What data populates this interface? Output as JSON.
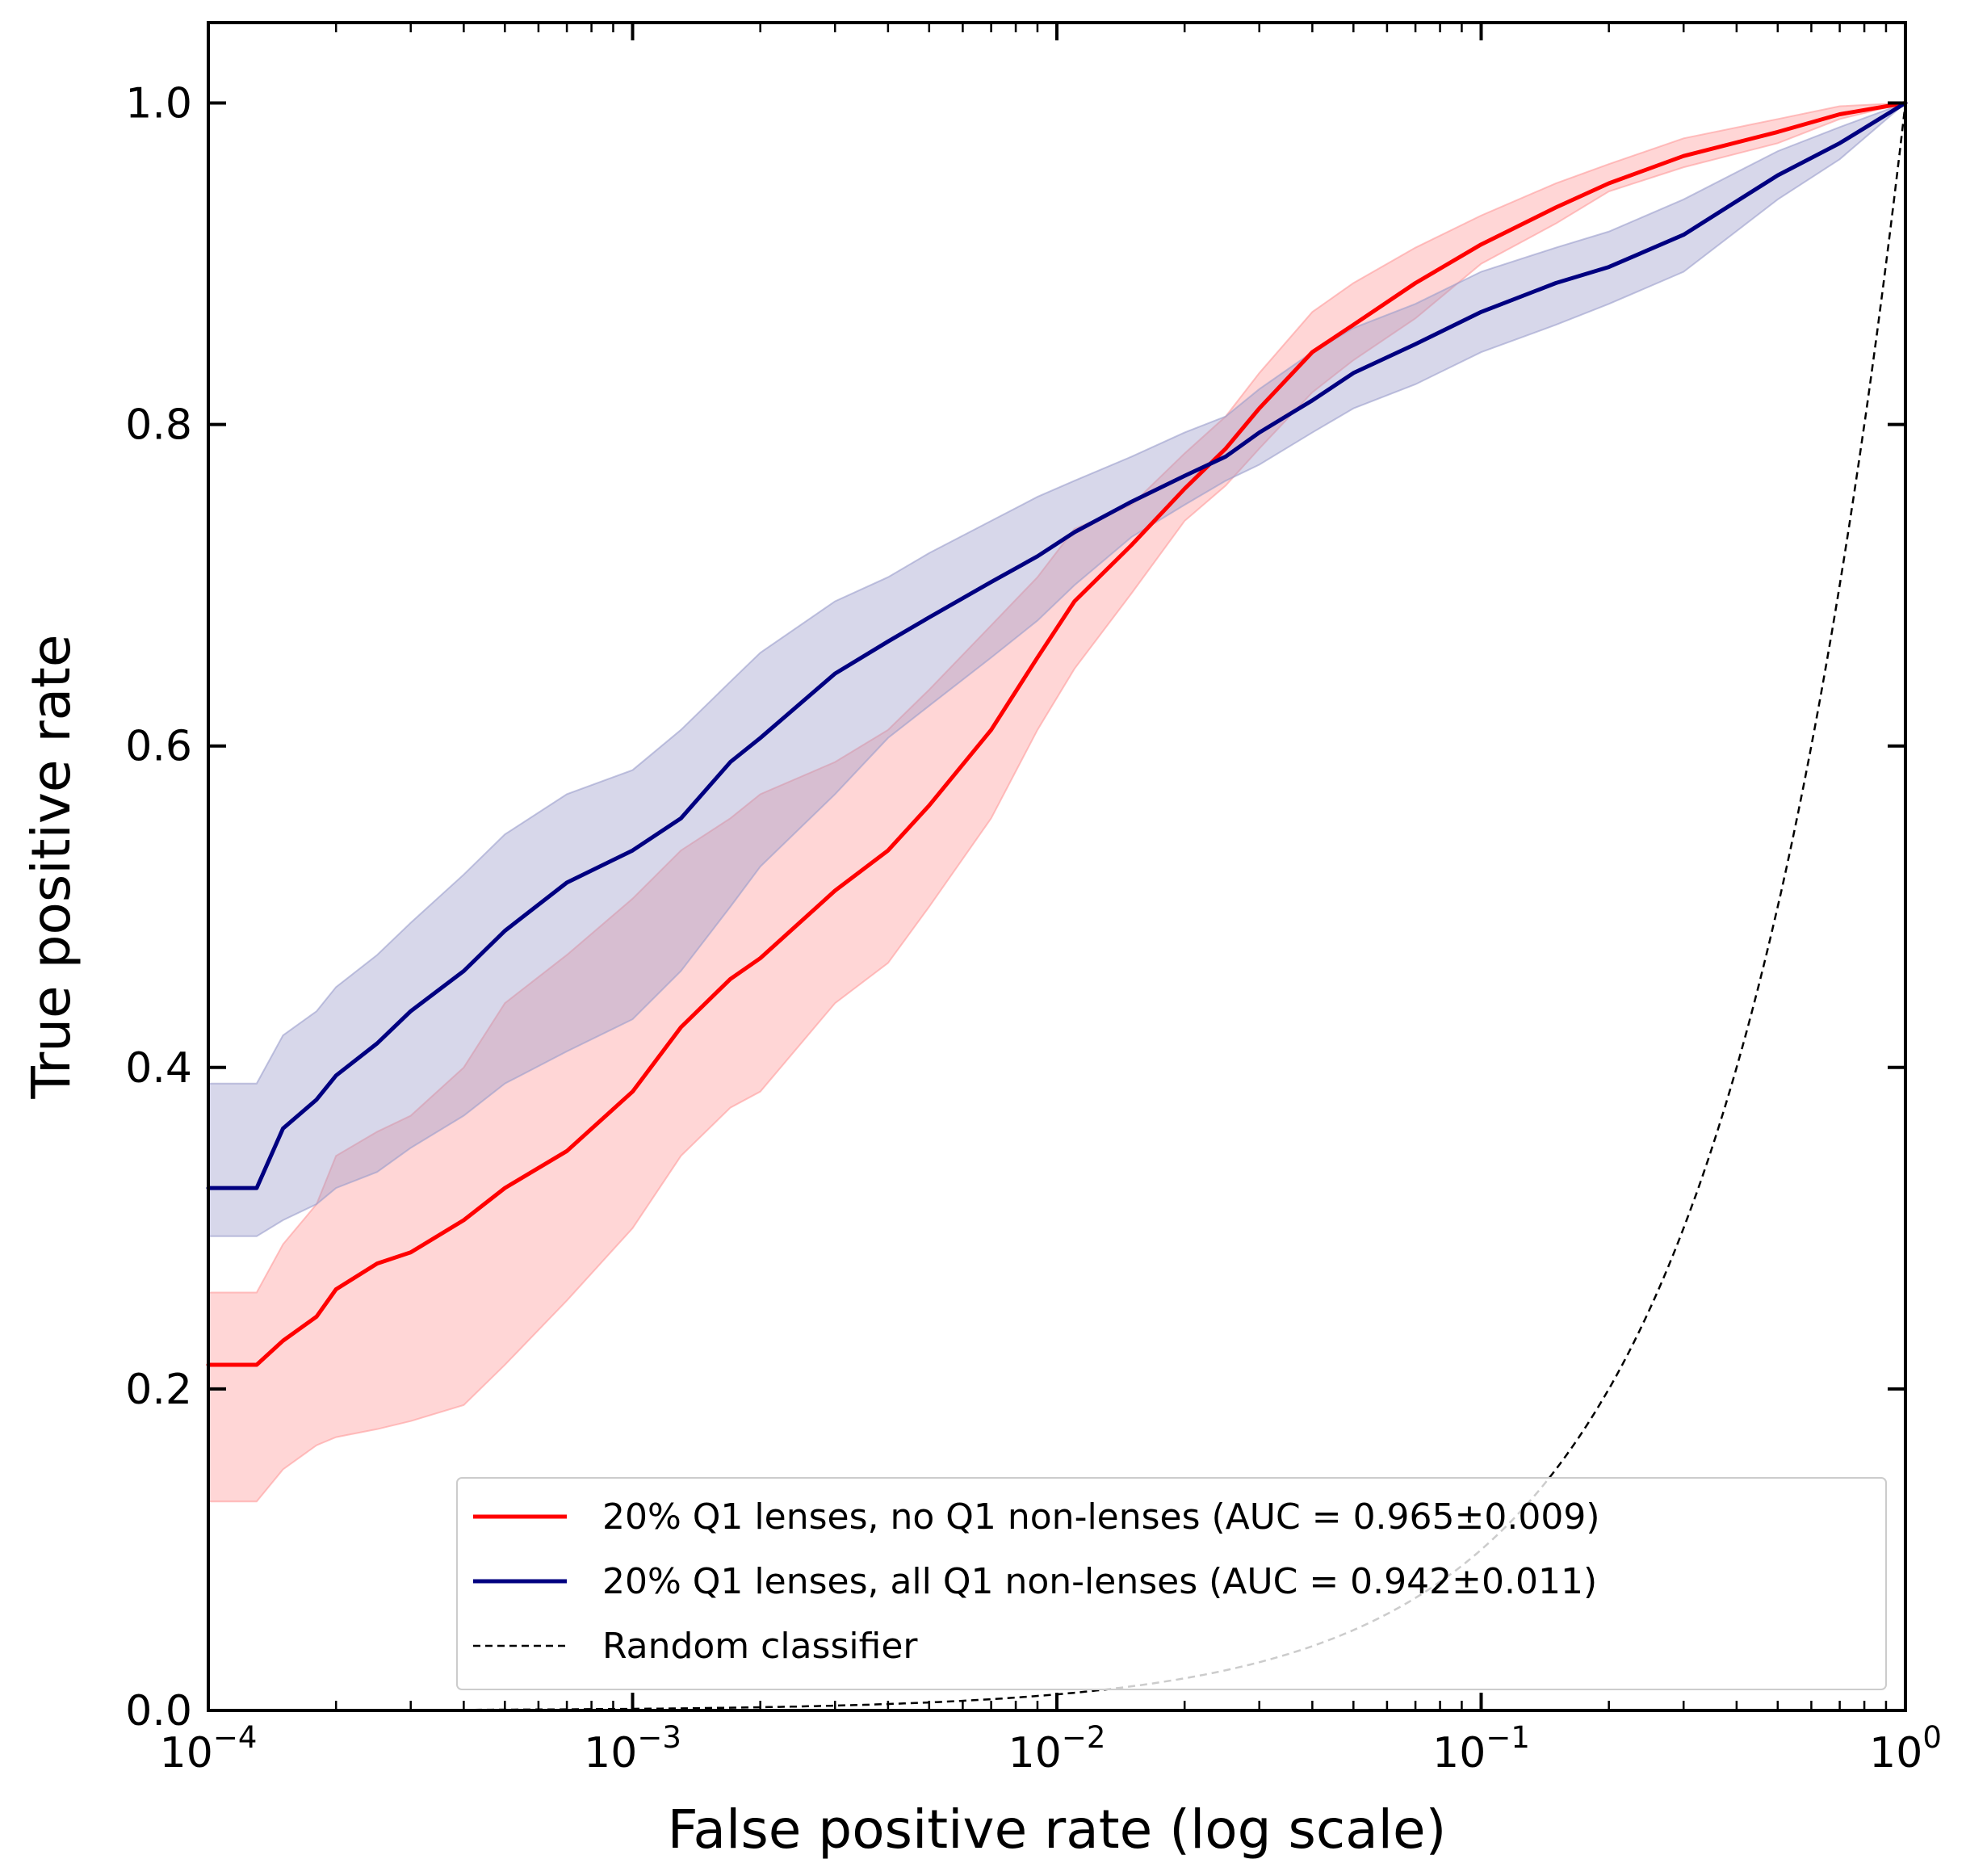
{
  "chart_data": {
    "type": "line",
    "title": "",
    "xlabel": "False positive rate (log scale)",
    "ylabel": "True positive rate",
    "xscale": "log",
    "xlim": [
      0.0001,
      1
    ],
    "ylim": [
      0.0,
      1.05
    ],
    "x_tick_values": [
      0.0001,
      0.001,
      0.01,
      0.1,
      1
    ],
    "x_tick_labels": [
      {
        "base": "10",
        "exp": "−4"
      },
      {
        "base": "10",
        "exp": "−3"
      },
      {
        "base": "10",
        "exp": "−2"
      },
      {
        "base": "10",
        "exp": "−1"
      },
      {
        "base": "10",
        "exp": "0"
      }
    ],
    "y_ticks": [
      0.0,
      0.2,
      0.4,
      0.6,
      0.8,
      1.0
    ],
    "y_tick_labels": [
      "0.0",
      "0.2",
      "0.4",
      "0.6",
      "0.8",
      "1.0"
    ],
    "grid": false,
    "legend_position": "lower-right",
    "series": [
      {
        "name": "20% Q1 lenses, no Q1 non-lenses (AUC = 0.965±0.009)",
        "color": "#ff0000",
        "band_color": "#ff9999",
        "x": [
          0.0001,
          0.00013,
          0.00015,
          0.00018,
          0.0002,
          0.00025,
          0.0003,
          0.0004,
          0.0005,
          0.0007,
          0.001,
          0.0013,
          0.0017,
          0.002,
          0.003,
          0.004,
          0.005,
          0.007,
          0.009,
          0.011,
          0.015,
          0.02,
          0.025,
          0.03,
          0.04,
          0.05,
          0.07,
          0.1,
          0.15,
          0.2,
          0.3,
          0.5,
          0.7,
          1.0
        ],
        "values": [
          0.215,
          0.215,
          0.23,
          0.245,
          0.262,
          0.278,
          0.285,
          0.305,
          0.325,
          0.348,
          0.385,
          0.425,
          0.455,
          0.468,
          0.51,
          0.535,
          0.563,
          0.61,
          0.655,
          0.69,
          0.725,
          0.76,
          0.785,
          0.81,
          0.845,
          0.862,
          0.888,
          0.912,
          0.935,
          0.95,
          0.967,
          0.982,
          0.993,
          1.0
        ],
        "lower": [
          0.13,
          0.13,
          0.15,
          0.165,
          0.17,
          0.175,
          0.18,
          0.19,
          0.215,
          0.255,
          0.3,
          0.345,
          0.375,
          0.385,
          0.44,
          0.465,
          0.5,
          0.555,
          0.61,
          0.648,
          0.695,
          0.74,
          0.762,
          0.785,
          0.82,
          0.84,
          0.866,
          0.9,
          0.925,
          0.945,
          0.96,
          0.975,
          0.99,
          1.0
        ],
        "upper": [
          0.26,
          0.26,
          0.29,
          0.315,
          0.345,
          0.36,
          0.37,
          0.4,
          0.44,
          0.47,
          0.505,
          0.535,
          0.555,
          0.57,
          0.59,
          0.61,
          0.635,
          0.675,
          0.705,
          0.735,
          0.75,
          0.782,
          0.805,
          0.832,
          0.87,
          0.888,
          0.91,
          0.93,
          0.95,
          0.962,
          0.978,
          0.99,
          0.998,
          1.0
        ]
      },
      {
        "name": "20% Q1 lenses, all Q1 non-lenses (AUC = 0.942±0.011)",
        "color": "#000080",
        "band_color": "#9a9ccb",
        "x": [
          0.0001,
          0.00013,
          0.00015,
          0.00018,
          0.0002,
          0.00025,
          0.0003,
          0.0004,
          0.0005,
          0.0007,
          0.001,
          0.0013,
          0.0017,
          0.002,
          0.003,
          0.004,
          0.005,
          0.007,
          0.009,
          0.011,
          0.015,
          0.02,
          0.025,
          0.03,
          0.04,
          0.05,
          0.07,
          0.1,
          0.15,
          0.2,
          0.3,
          0.5,
          0.7,
          1.0
        ],
        "values": [
          0.325,
          0.325,
          0.362,
          0.38,
          0.395,
          0.415,
          0.435,
          0.46,
          0.485,
          0.515,
          0.535,
          0.555,
          0.59,
          0.605,
          0.645,
          0.665,
          0.68,
          0.702,
          0.718,
          0.733,
          0.752,
          0.768,
          0.78,
          0.795,
          0.815,
          0.832,
          0.85,
          0.87,
          0.888,
          0.898,
          0.918,
          0.955,
          0.975,
          1.0
        ],
        "lower": [
          0.295,
          0.295,
          0.305,
          0.315,
          0.325,
          0.335,
          0.35,
          0.37,
          0.39,
          0.41,
          0.43,
          0.46,
          0.5,
          0.525,
          0.57,
          0.605,
          0.625,
          0.655,
          0.678,
          0.7,
          0.73,
          0.75,
          0.765,
          0.775,
          0.795,
          0.81,
          0.825,
          0.845,
          0.862,
          0.875,
          0.895,
          0.94,
          0.965,
          1.0
        ],
        "upper": [
          0.39,
          0.39,
          0.42,
          0.435,
          0.45,
          0.47,
          0.49,
          0.52,
          0.545,
          0.57,
          0.585,
          0.61,
          0.64,
          0.658,
          0.69,
          0.705,
          0.72,
          0.74,
          0.755,
          0.765,
          0.78,
          0.795,
          0.805,
          0.822,
          0.845,
          0.86,
          0.875,
          0.895,
          0.91,
          0.92,
          0.94,
          0.97,
          0.985,
          1.0
        ]
      },
      {
        "name": "Random classifier",
        "color": "#000000",
        "style": "dashed",
        "function": "y = x"
      }
    ]
  }
}
